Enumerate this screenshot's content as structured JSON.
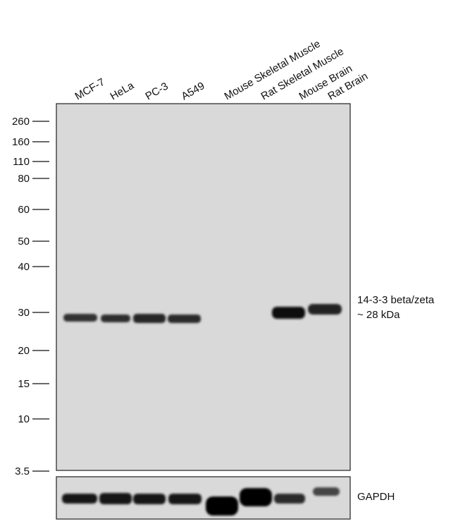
{
  "lanes": [
    "MCF-7",
    "HeLa",
    "PC-3",
    "A549",
    "Mouse Skeletal Muscle",
    "Rat Skeletal Muscle",
    "Mouse Brain",
    "Rat Brain"
  ],
  "markers": [
    "260",
    "160",
    "110",
    "80",
    "60",
    "50",
    "40",
    "30",
    "20",
    "15",
    "10",
    "3.5"
  ],
  "target": {
    "name": "14-3-3 beta/zeta",
    "size": "~ 28 kDa"
  },
  "loading_control": "GAPDH"
}
